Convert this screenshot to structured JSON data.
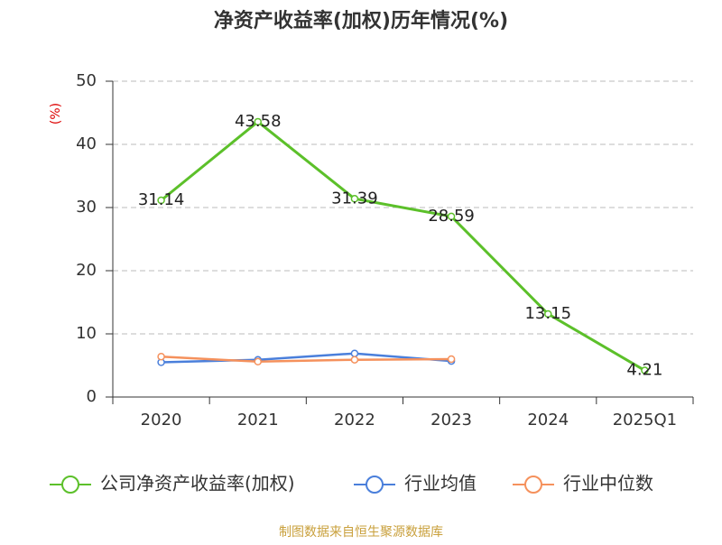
{
  "chart_data": {
    "type": "line",
    "title": "净资产收益率(加权)历年情况(%)",
    "y_label": "(%)",
    "categories": [
      "2020",
      "2021",
      "2022",
      "2023",
      "2024",
      "2025Q1"
    ],
    "series": [
      {
        "name": "公司净资产收益率(加权)",
        "color": "#5cc02a",
        "values": [
          31.14,
          43.58,
          31.39,
          28.59,
          13.15,
          4.21
        ],
        "data_labels": true
      },
      {
        "name": "行业均值",
        "color": "#4a7fdb",
        "values": [
          5.5,
          5.9,
          6.9,
          5.7,
          null,
          null
        ]
      },
      {
        "name": "行业中位数",
        "color": "#f5915c",
        "values": [
          6.4,
          5.6,
          5.9,
          6.0,
          null,
          null
        ]
      }
    ],
    "ylim": [
      0,
      50
    ],
    "yticks": [
      0,
      10,
      20,
      30,
      40,
      50
    ],
    "grid": true,
    "source": "制图数据来自恒生聚源数据库"
  }
}
